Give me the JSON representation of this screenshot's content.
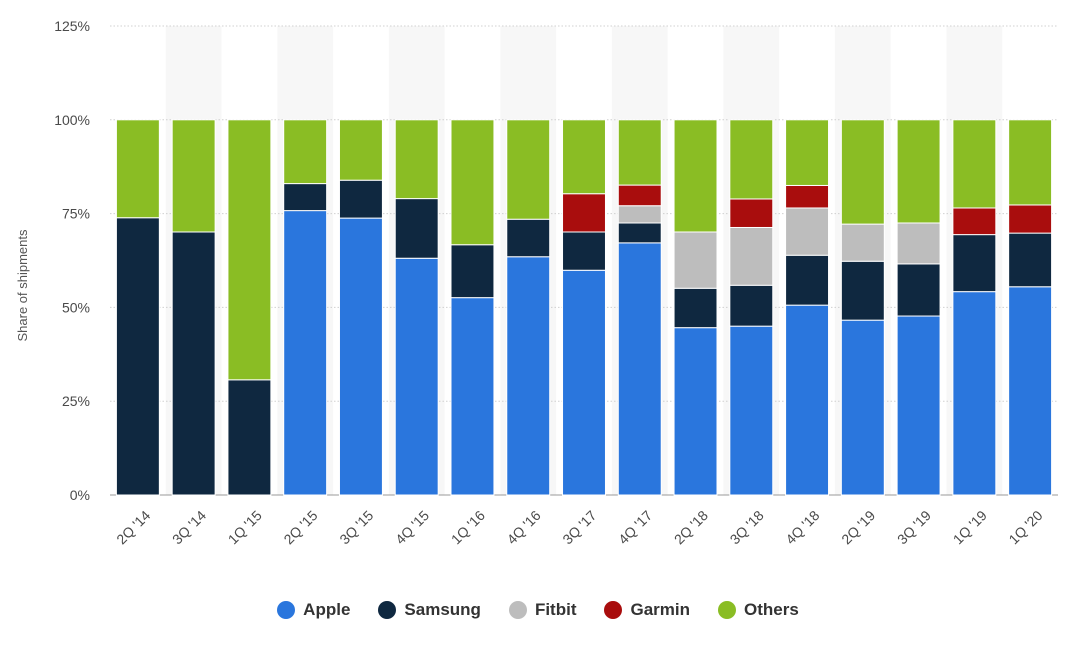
{
  "chart_data": {
    "type": "bar",
    "stacked": true,
    "categories": [
      "2Q '14",
      "3Q '14",
      "1Q '15",
      "2Q '15",
      "3Q '15",
      "4Q '15",
      "1Q '16",
      "4Q '16",
      "3Q '17",
      "4Q '17",
      "2Q '18",
      "3Q '18",
      "4Q '18",
      "2Q '19",
      "3Q '19",
      "1Q '19",
      "1Q '20"
    ],
    "series": [
      {
        "name": "Apple",
        "color": "#2a76dd",
        "values": [
          0,
          0,
          0,
          75.8,
          73.8,
          63.1,
          52.6,
          63.5,
          59.9,
          67.2,
          44.6,
          45.0,
          50.6,
          46.6,
          47.7,
          54.2,
          55.5
        ]
      },
      {
        "name": "Samsung",
        "color": "#0f2840",
        "values": [
          73.9,
          70.1,
          30.7,
          7.2,
          10.1,
          15.9,
          14.1,
          10.0,
          10.2,
          5.3,
          10.5,
          10.9,
          13.3,
          15.7,
          13.9,
          15.2,
          14.3
        ]
      },
      {
        "name": "Fitbit",
        "color": "#bdbdbd",
        "values": [
          0,
          0,
          0,
          0,
          0,
          0,
          0,
          0,
          0,
          4.6,
          15.0,
          15.4,
          12.6,
          9.9,
          10.9,
          0,
          0
        ]
      },
      {
        "name": "Garmin",
        "color": "#a90d0d",
        "values": [
          0,
          0,
          0,
          0,
          0,
          0,
          0,
          0,
          10.2,
          5.5,
          0,
          7.6,
          6.0,
          0,
          0,
          7.1,
          7.5
        ]
      },
      {
        "name": "Others",
        "color": "#8abd24",
        "values": [
          26.1,
          29.9,
          69.3,
          17.0,
          16.1,
          21.0,
          33.3,
          26.5,
          19.7,
          17.4,
          29.9,
          21.1,
          17.5,
          27.8,
          27.5,
          23.5,
          22.7
        ]
      }
    ],
    "ylabel": "Share of shipments",
    "ylim": [
      0,
      125
    ],
    "yticks": [
      "0%",
      "25%",
      "50%",
      "75%",
      "100%",
      "125%"
    ],
    "ytick_values": [
      0,
      25,
      50,
      75,
      100,
      125
    ],
    "legend_position": "bottom-center",
    "grid": true
  }
}
